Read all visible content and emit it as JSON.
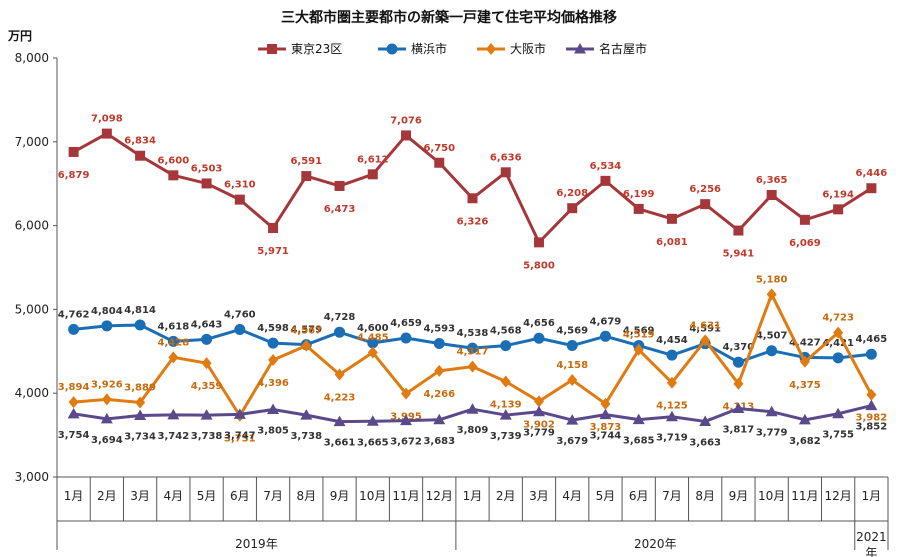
{
  "chart_data": {
    "type": "line",
    "title": "三大都市圏主要都市の新築一戸建て住宅平均価格推移",
    "unit": "万円",
    "ylim": [
      3000,
      8000
    ],
    "yticks": [
      "3,000",
      "4,000",
      "5,000",
      "6,000",
      "7,000",
      "8,000"
    ],
    "x": [
      "1月",
      "2月",
      "3月",
      "4月",
      "5月",
      "6月",
      "7月",
      "8月",
      "9月",
      "10月",
      "11月",
      "12月",
      "1月",
      "2月",
      "3月",
      "4月",
      "5月",
      "6月",
      "7月",
      "8月",
      "9月",
      "10月",
      "11月",
      "12月",
      "1月"
    ],
    "years": [
      {
        "label": "2019年",
        "start": 0,
        "end": 11
      },
      {
        "label": "2020年",
        "start": 12,
        "end": 23
      },
      {
        "label": "2021\n年",
        "start": 24,
        "end": 24
      }
    ],
    "legend_position": "top",
    "grid": false,
    "series": [
      {
        "name": "東京23区",
        "color": "#a5373a",
        "marker": "square",
        "values": [
          6879,
          7098,
          6834,
          6600,
          6503,
          6310,
          5971,
          6591,
          6473,
          6612,
          7076,
          6750,
          6326,
          6636,
          5800,
          6208,
          6534,
          6199,
          6081,
          6256,
          5941,
          6365,
          6069,
          6194,
          6446
        ],
        "labels": [
          "6,879",
          "7,098",
          "6,834",
          "6,600",
          "6,503",
          "6,310",
          "5,971",
          "6,591",
          "6,473",
          "6,612",
          "7,076",
          "6,750",
          "6,326",
          "6,636",
          "5,800",
          "6,208",
          "6,534",
          "6,199",
          "6,081",
          "6,256",
          "5,941",
          "6,365",
          "6,069",
          "6,194",
          "6,446"
        ]
      },
      {
        "name": "横浜市",
        "color": "#1a6eb5",
        "marker": "circle",
        "values": [
          4762,
          4804,
          4814,
          4618,
          4643,
          4760,
          4598,
          4579,
          4728,
          4600,
          4659,
          4593,
          4538,
          4568,
          4656,
          4569,
          4679,
          4569,
          4454,
          4591,
          4370,
          4507,
          4427,
          4421,
          4465
        ],
        "labels": [
          "4,762",
          "4,804",
          "4,814",
          "4,618",
          "4,643",
          "4,760",
          "4,598",
          "4,579",
          "4,728",
          "4,600",
          "4,659",
          "4,593",
          "4,538",
          "4,568",
          "4,656",
          "4,569",
          "4,679",
          "4,569",
          "4,454",
          "4,591",
          "4,370",
          "4,507",
          "4,427",
          "4,421",
          "4,465"
        ]
      },
      {
        "name": "大阪市",
        "color": "#e07b12",
        "marker": "diamond",
        "values": [
          3894,
          3926,
          3889,
          4428,
          4359,
          3731,
          4396,
          4567,
          4223,
          4485,
          3995,
          4266,
          4317,
          4139,
          3902,
          4158,
          3873,
          4519,
          4125,
          4631,
          4113,
          5180,
          4375,
          4723,
          3982
        ],
        "labels": [
          "3,894",
          "3,926",
          "3,889",
          "4,428",
          "4,359",
          "3,731",
          "4,396",
          "4,567",
          "4,223",
          "4,485",
          "3,995",
          "4,266",
          "4,317",
          "4,139",
          "3,902",
          "4,158",
          "3,873",
          "4,519",
          "4,125",
          "4,631",
          "4,113",
          "5,180",
          "4,375",
          "4,723",
          "3,982"
        ]
      },
      {
        "name": "名古屋市",
        "color": "#5b4a8b",
        "marker": "triangle",
        "values": [
          3754,
          3694,
          3734,
          3742,
          3738,
          3747,
          3805,
          3738,
          3661,
          3665,
          3672,
          3683,
          3809,
          3739,
          3779,
          3679,
          3744,
          3685,
          3719,
          3663,
          3817,
          3779,
          3682,
          3755,
          3852
        ],
        "labels": [
          "3,754",
          "3,694",
          "3,734",
          "3,742",
          "3,738",
          "3,747",
          "3,805",
          "3,738",
          "3,661",
          "3,665",
          "3,672",
          "3,683",
          "3,809",
          "3,739",
          "3,779",
          "3,679",
          "3,744",
          "3,685",
          "3,719",
          "3,663",
          "3,817",
          "3,779",
          "3,682",
          "3,755",
          "3,852"
        ]
      }
    ]
  }
}
